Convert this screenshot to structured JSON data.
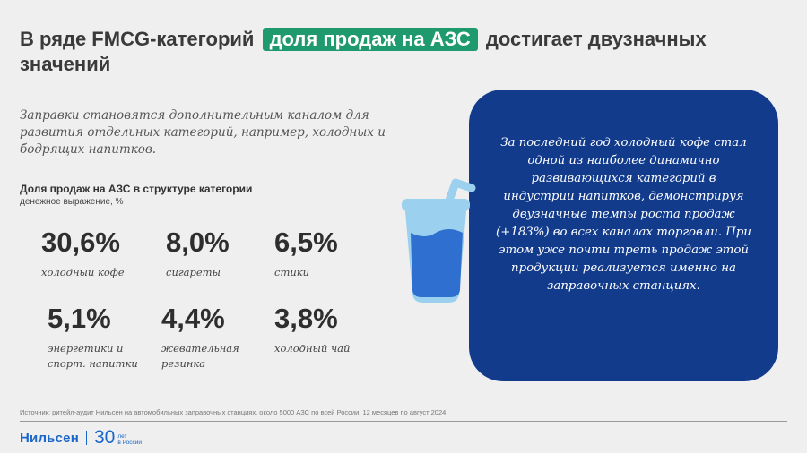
{
  "title": {
    "before": "В ряде FMCG-категорий",
    "highlight": "доля продаж на АЗС",
    "after": "достигает двузначных значений"
  },
  "intro": "Заправки становятся дополнительным каналом для развития отдельных категорий, например, холодных и бодрящих напитков.",
  "section": {
    "title": "Доля продаж на АЗС в структуре категории",
    "subtitle": "денежное выражение, %"
  },
  "stats": [
    {
      "value": "30,6%",
      "label": "холодный кофе"
    },
    {
      "value": "8,0%",
      "label": "сигареты"
    },
    {
      "value": "6,5%",
      "label": "стики"
    },
    {
      "value": "5,1%",
      "label": "энергетики и спорт. напитки"
    },
    {
      "value": "4,4%",
      "label": "жевательная резинка"
    },
    {
      "value": "3,8%",
      "label": "холодный чай"
    }
  ],
  "panel_text": "За последний год холодный кофе стал одной из наиболее динамично развивающихся категорий в индустрии напитков, демонстрируя двузначные темпы роста продаж (+183%) во всех каналах торговли. При этом уже почти треть продаж этой продукции реализуется именно на заправочных станциях.",
  "source": "Источник: ритейл-аудит Нильсен на автомобильных заправочных станциях, около 5000 АЗС по всей России. 12 месяцев по август 2024.",
  "footer": {
    "brand": "Нильсен",
    "anniversary_number": "30",
    "anniversary_line1": "лет",
    "anniversary_line2": "в России"
  },
  "colors": {
    "highlight": "#1f9a6e",
    "panel": "#123b8c",
    "cup_light": "#9bd0ee",
    "cup_fill": "#2f6fd0",
    "brand": "#1a66c9",
    "background": "#efefef"
  },
  "icons": [
    "drink-cup-icon"
  ]
}
